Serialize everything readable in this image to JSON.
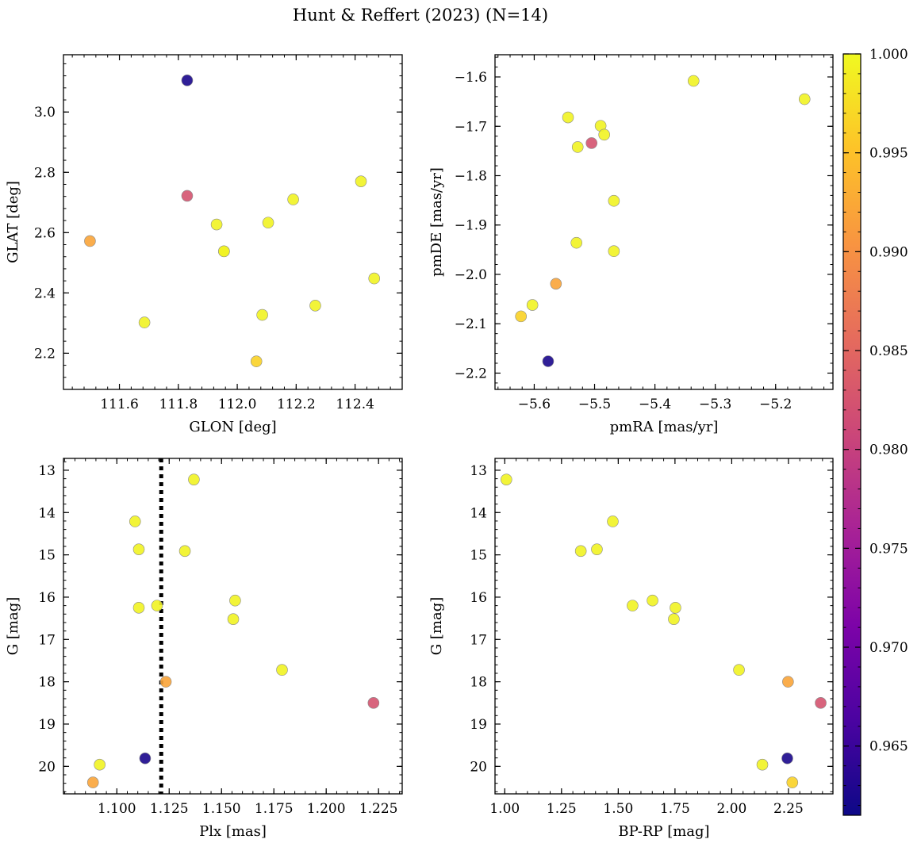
{
  "figure_title": "Hunt & Reffert (2023) (N=14)",
  "colormap": "plasma",
  "colorbar": {
    "range": [
      0.9615,
      1.0
    ],
    "ticks": [
      0.965,
      0.97,
      0.975,
      0.98,
      0.985,
      0.99,
      0.995,
      1.0
    ],
    "tick_labels": [
      "0.965",
      "0.970",
      "0.975",
      "0.980",
      "0.985",
      "0.990",
      "0.995",
      "1.000"
    ]
  },
  "colors": {
    "axes": "#000000",
    "background": "#ffffff",
    "marker_edge": "#8a8a8a"
  },
  "chart_data": [
    {
      "type": "scatter",
      "name": "glon-glat",
      "xlabel": "GLON [deg]",
      "ylabel": "GLAT [deg]",
      "xlim": [
        111.41,
        112.56
      ],
      "ylim": [
        2.08,
        3.19
      ],
      "xticks": [
        111.6,
        111.8,
        112.0,
        112.2,
        112.4
      ],
      "xtick_labels": [
        "111.6",
        "111.8",
        "112.0",
        "112.2",
        "112.4"
      ],
      "yticks": [
        2.2,
        2.4,
        2.6,
        2.8,
        3.0
      ],
      "ytick_labels": [
        "2.2",
        "2.4",
        "2.6",
        "2.8",
        "3.0"
      ],
      "x": [
        111.83,
        111.83,
        111.5,
        111.93,
        111.955,
        111.955,
        112.105,
        112.19,
        112.42,
        112.465,
        111.685,
        112.085,
        112.265,
        112.065
      ],
      "y": [
        3.105,
        2.722,
        2.572,
        2.627,
        2.538,
        2.538,
        2.633,
        2.71,
        2.77,
        2.448,
        2.302,
        2.327,
        2.358,
        2.173
      ],
      "c": [
        0.9625,
        0.9825,
        0.992,
        0.9995,
        0.9995,
        0.9995,
        0.9995,
        0.9995,
        0.9995,
        0.9995,
        0.9995,
        0.9995,
        0.9995,
        0.9965
      ]
    },
    {
      "type": "scatter",
      "name": "pmra-pmde",
      "xlabel": "pmRA [mas/yr]",
      "ylabel": "pmDE [mas/yr]",
      "xlim": [
        -5.665,
        -5.105
      ],
      "ylim": [
        -2.233,
        -1.555
      ],
      "xticks": [
        -5.6,
        -5.5,
        -5.4,
        -5.3,
        -5.2
      ],
      "xtick_labels": [
        "−5.6",
        "−5.5",
        "−5.4",
        "−5.3",
        "−5.2"
      ],
      "yticks": [
        -2.2,
        -2.1,
        -2.0,
        -1.9,
        -1.8,
        -1.7,
        -1.6
      ],
      "ytick_labels": [
        "−2.2",
        "−2.1",
        "−2.0",
        "−1.9",
        "−1.8",
        "−1.7",
        "−1.6"
      ],
      "x": [
        -5.336,
        -5.152,
        -5.544,
        -5.49,
        -5.484,
        -5.528,
        -5.505,
        -5.468,
        -5.53,
        -5.468,
        -5.564,
        -5.603,
        -5.622,
        -5.577
      ],
      "y": [
        -1.608,
        -1.645,
        -1.682,
        -1.699,
        -1.717,
        -1.742,
        -1.734,
        -1.851,
        -1.936,
        -1.953,
        -2.019,
        -2.062,
        -2.085,
        -2.176
      ],
      "c": [
        0.9995,
        0.9995,
        0.9995,
        0.9995,
        0.9995,
        0.9995,
        0.9825,
        0.9995,
        0.9995,
        0.9995,
        0.992,
        0.9995,
        0.9965,
        0.9625
      ]
    },
    {
      "type": "scatter",
      "name": "plx-g",
      "xlabel": "Plx [mas]",
      "ylabel": "G [mag]",
      "xlim": [
        1.0745,
        1.2363
      ],
      "ylim": [
        20.65,
        12.72
      ],
      "y_inverted": true,
      "vline": {
        "x": 1.1212,
        "style": "dotted"
      },
      "xticks": [
        1.1,
        1.125,
        1.15,
        1.175,
        1.2,
        1.225
      ],
      "xtick_labels": [
        "1.100",
        "1.125",
        "1.150",
        "1.175",
        "1.200",
        "1.225"
      ],
      "yticks": [
        13,
        14,
        15,
        16,
        17,
        18,
        19,
        20
      ],
      "ytick_labels": [
        "13",
        "14",
        "15",
        "16",
        "17",
        "18",
        "19",
        "20"
      ],
      "x": [
        1.1368,
        1.1087,
        1.1105,
        1.1325,
        1.1565,
        1.1105,
        1.1192,
        1.1556,
        1.1789,
        1.1234,
        1.2226,
        1.0918,
        1.1135,
        1.0886
      ],
      "y": [
        13.22,
        14.21,
        14.87,
        14.91,
        16.08,
        16.25,
        16.2,
        16.52,
        17.72,
        18.0,
        18.5,
        19.96,
        19.81,
        20.38
      ],
      "c": [
        0.9995,
        0.9995,
        0.9995,
        0.9995,
        0.9995,
        0.9995,
        0.9995,
        0.9995,
        0.9995,
        0.992,
        0.9825,
        0.9995,
        0.9625,
        0.992
      ]
    },
    {
      "type": "scatter",
      "name": "bprp-g",
      "xlabel": "BP-RP [mag]",
      "ylabel": "G [mag]",
      "xlim": [
        0.957,
        2.446
      ],
      "ylim": [
        20.65,
        12.72
      ],
      "y_inverted": true,
      "xticks": [
        1.0,
        1.25,
        1.5,
        1.75,
        2.0,
        2.25
      ],
      "xtick_labels": [
        "1.00",
        "1.25",
        "1.50",
        "1.75",
        "2.00",
        "2.25"
      ],
      "yticks": [
        13,
        14,
        15,
        16,
        17,
        18,
        19,
        20
      ],
      "ytick_labels": [
        "13",
        "14",
        "15",
        "16",
        "17",
        "18",
        "19",
        "20"
      ],
      "x": [
        1.007,
        1.476,
        1.406,
        1.335,
        1.651,
        1.563,
        1.752,
        1.745,
        2.032,
        2.248,
        2.392,
        2.135,
        2.245,
        2.267
      ],
      "y": [
        13.22,
        14.21,
        14.87,
        14.91,
        16.08,
        16.2,
        16.25,
        16.52,
        17.72,
        18.0,
        18.5,
        19.96,
        19.81,
        20.38
      ],
      "c": [
        0.9995,
        0.9995,
        0.9995,
        0.9995,
        0.9995,
        0.9995,
        0.9995,
        0.9995,
        0.9995,
        0.992,
        0.9825,
        0.9995,
        0.9625,
        0.9965
      ]
    }
  ]
}
